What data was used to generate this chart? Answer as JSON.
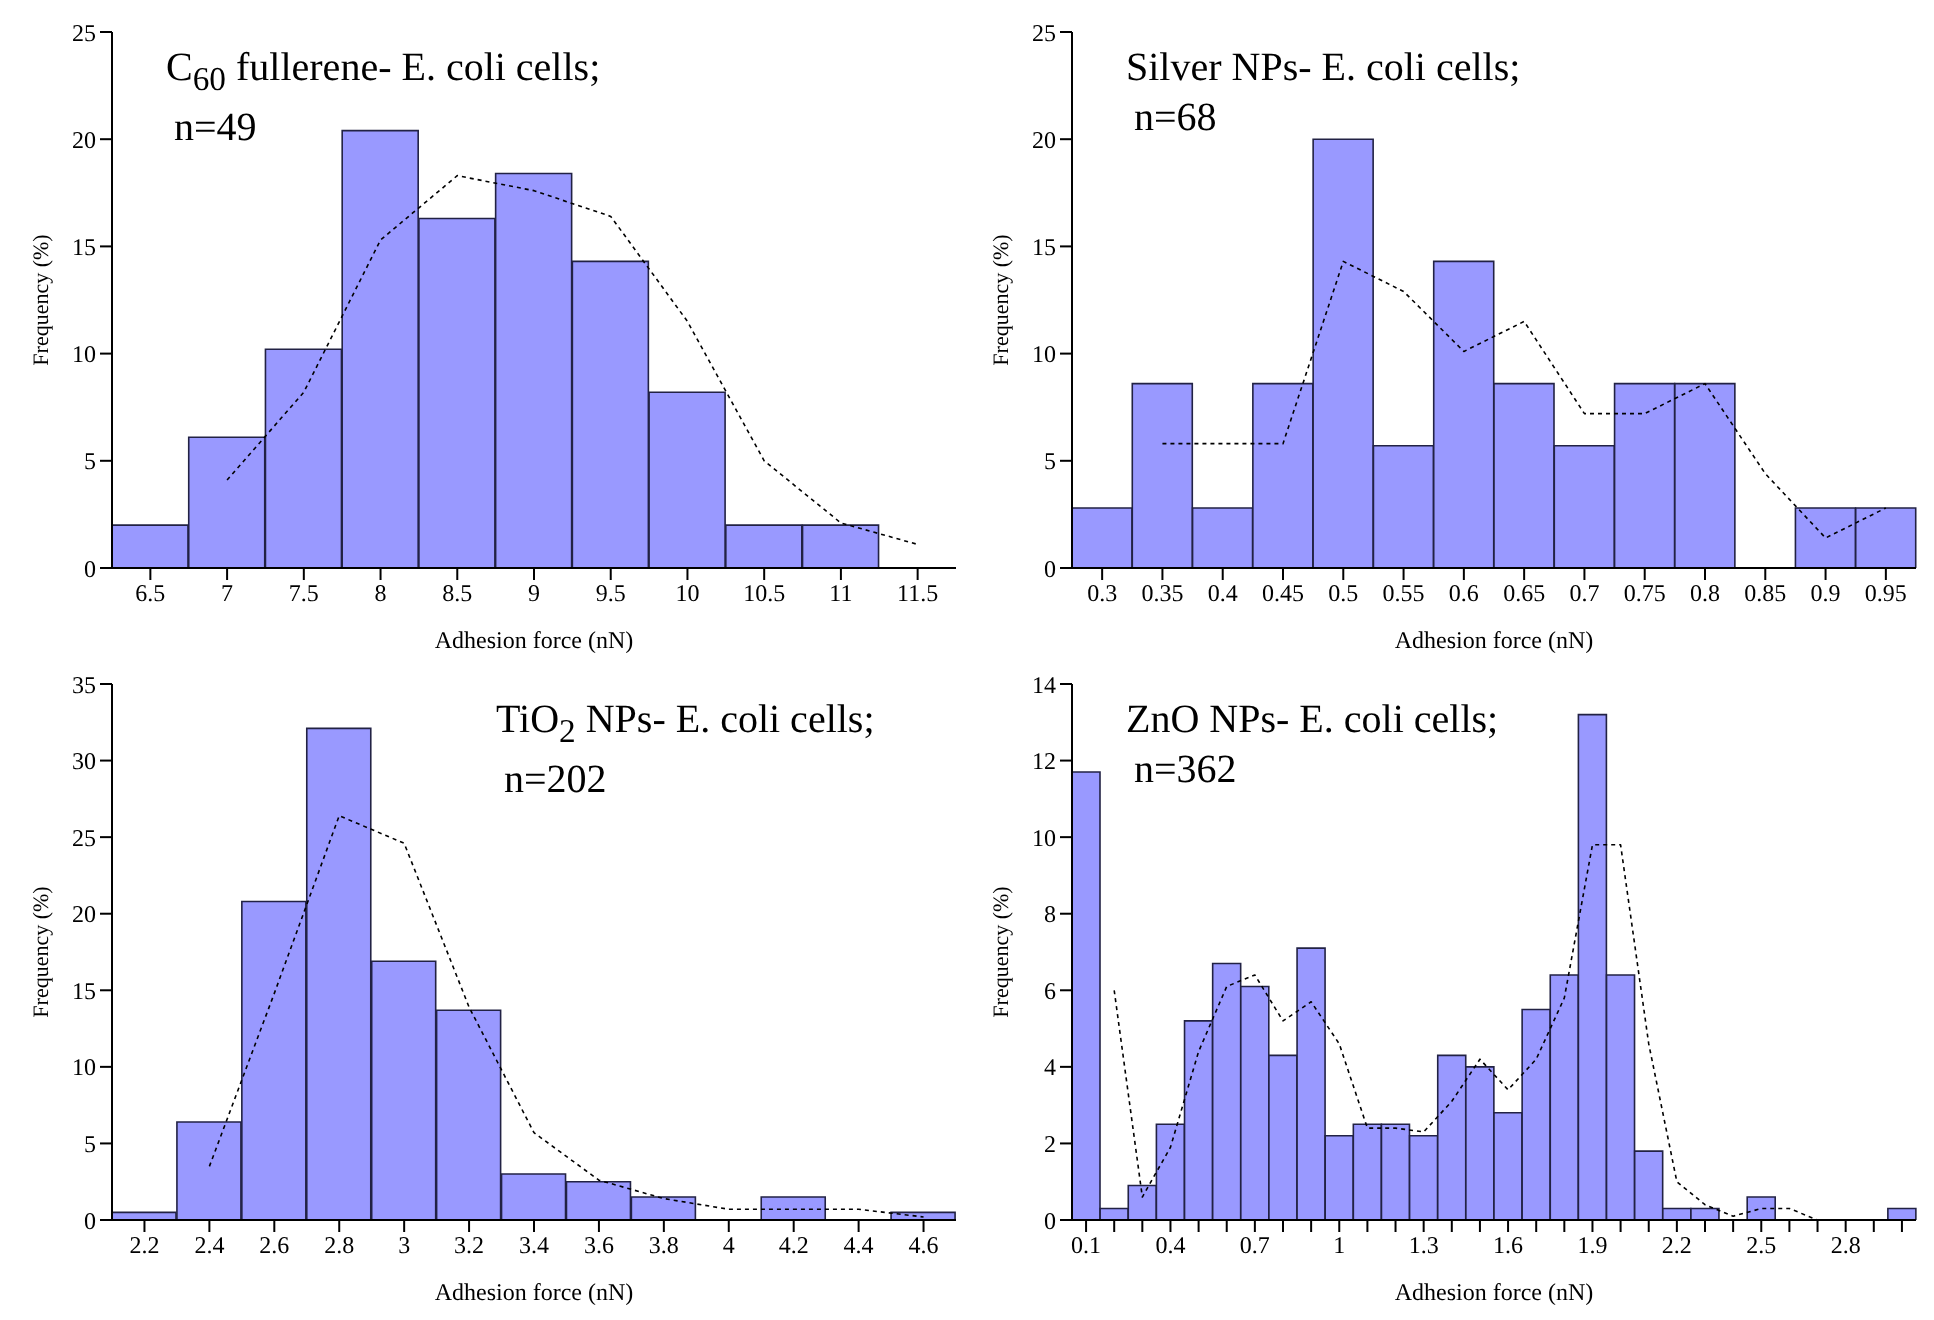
{
  "chart_data": [
    {
      "type": "bar",
      "annotations": [
        "C$_{60}$ fullerene- E. coli cells;",
        "n=49"
      ],
      "xlabel": "Adhesion force (nN)",
      "ylabel": "Frequency (%)",
      "categories": [
        "6.5",
        "7",
        "7.5",
        "8",
        "8.5",
        "9",
        "9.5",
        "10",
        "10.5",
        "11",
        "11.5"
      ],
      "ylim": [
        0,
        25
      ],
      "yticks": [
        0,
        5,
        10,
        15,
        20,
        25
      ],
      "grid": false,
      "legend": false,
      "series": [
        {
          "color": "#9999ff",
          "values": [
            2,
            6.1,
            10.2,
            20.4,
            16.3,
            18.4,
            14.3,
            8.2,
            2,
            2,
            0
          ]
        },
        {
          "type": "line",
          "color": "#000000",
          "line_style": "dotted",
          "marker": "none",
          "values": [
            null,
            4.1,
            8.2,
            15.3,
            18.3,
            17.6,
            16.4,
            11.5,
            5,
            2.1,
            1.1
          ]
        }
      ]
    },
    {
      "type": "bar",
      "annotations": [
        "Silver NPs- E. coli cells;",
        "n=68"
      ],
      "xlabel": "Adhesion force (nN)",
      "ylabel": "Frequency (%)",
      "categories": [
        "0.3",
        "0.35",
        "0.4",
        "0.45",
        "0.5",
        "0.55",
        "0.6",
        "0.65",
        "0.7",
        "0.75",
        "0.8",
        "0.85",
        "0.9",
        "0.95"
      ],
      "ylim": [
        0,
        25
      ],
      "yticks": [
        0,
        5,
        10,
        15,
        20,
        25
      ],
      "grid": false,
      "legend": false,
      "series": [
        {
          "color": "#9999ff",
          "values": [
            2.8,
            8.6,
            2.8,
            8.6,
            20,
            5.7,
            14.3,
            8.6,
            5.7,
            8.6,
            8.6,
            0,
            2.8,
            2.8
          ]
        },
        {
          "type": "line",
          "color": "#000000",
          "line_style": "dotted",
          "marker": "none",
          "values": [
            null,
            5.8,
            5.8,
            5.8,
            14.3,
            12.9,
            10.1,
            11.5,
            7.2,
            7.2,
            8.6,
            4.4,
            1.4,
            2.8
          ]
        }
      ]
    },
    {
      "type": "bar",
      "annotations": [
        "TiO$_{2}$ NPs- E. coli cells;",
        "n=202"
      ],
      "xlabel": "Adhesion force (nN)",
      "ylabel": "Frequency (%)",
      "categories": [
        "2.2",
        "2.4",
        "2.6",
        "2.8",
        "3",
        "3.2",
        "3.4",
        "3.6",
        "3.8",
        "4",
        "4.2",
        "4.4",
        "4.6"
      ],
      "ylim": [
        0,
        35
      ],
      "yticks": [
        0,
        5,
        10,
        15,
        20,
        25,
        30,
        35
      ],
      "grid": false,
      "legend": false,
      "series": [
        {
          "color": "#9999ff",
          "values": [
            0.5,
            6.4,
            20.8,
            32.1,
            16.9,
            13.7,
            3,
            2.5,
            1.5,
            0,
            1.5,
            0,
            0.5
          ]
        },
        {
          "type": "line",
          "color": "#000000",
          "line_style": "dotted",
          "marker": "none",
          "values": [
            null,
            3.5,
            14.8,
            26.4,
            24.6,
            13.9,
            5.7,
            2.6,
            1.4,
            0.7,
            0.7,
            0.7,
            0.2
          ]
        }
      ]
    },
    {
      "type": "bar",
      "annotations": [
        "ZnO NPs- E. coli cells;",
        "n=362"
      ],
      "xlabel": "Adhesion force (nN)",
      "ylabel": "Frequency (%)",
      "categories": [
        "0.1",
        null,
        null,
        "0.4",
        null,
        null,
        "0.7",
        null,
        null,
        "1",
        null,
        null,
        "1.3",
        null,
        null,
        "1.6",
        null,
        null,
        "1.9",
        null,
        null,
        "2.2",
        null,
        null,
        "2.5",
        null,
        null,
        "2.8",
        null,
        null
      ],
      "ylim": [
        0,
        14
      ],
      "yticks": [
        0,
        2,
        4,
        6,
        8,
        10,
        12,
        14
      ],
      "grid": false,
      "legend": false,
      "series": [
        {
          "color": "#9999ff",
          "values": [
            11.7,
            0.3,
            0.9,
            2.5,
            5.2,
            6.7,
            6.1,
            4.3,
            7.1,
            2.2,
            2.5,
            2.5,
            2.2,
            4.3,
            4,
            2.8,
            5.5,
            6.4,
            13.2,
            6.4,
            1.8,
            0.3,
            0.3,
            0,
            0.6,
            0,
            0,
            0,
            0,
            0.3
          ]
        },
        {
          "type": "line",
          "color": "#000000",
          "line_style": "dotted",
          "marker": "none",
          "values": [
            null,
            6,
            0.6,
            1.9,
            4.4,
            6.1,
            6.4,
            5.2,
            5.7,
            4.6,
            2.4,
            2.4,
            2.3,
            3.1,
            4.2,
            3.4,
            4.2,
            5.8,
            9.8,
            9.8,
            4.6,
            1,
            0.4,
            0.1,
            0.3,
            0.3,
            0,
            0,
            null,
            null
          ]
        }
      ]
    }
  ]
}
